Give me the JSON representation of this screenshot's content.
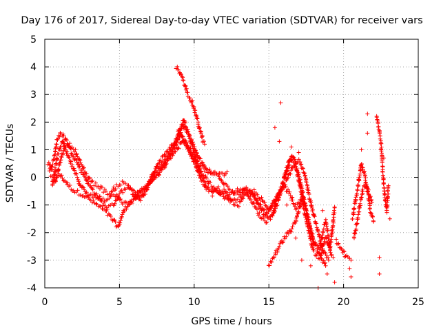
{
  "chart_data": {
    "type": "scatter",
    "title": "Day 176 of 2017, Sidereal Day-to-day VTEC variation (SDTVAR) for receiver vars",
    "xlabel": "GPS time / hours",
    "ylabel": "SDTVAR / TECUs",
    "xlim": [
      0,
      25
    ],
    "ylim": [
      -4,
      5
    ],
    "xticks": [
      0,
      5,
      10,
      15,
      20,
      25
    ],
    "yticks": [
      -4,
      -3,
      -2,
      -1,
      0,
      1,
      2,
      3,
      4,
      5
    ],
    "grid": true,
    "marker": "+",
    "series": [
      {
        "name": "SDTVAR",
        "color": "#ff0000",
        "tracks": [
          [
            [
              0.2,
              0.5
            ],
            [
              0.5,
              0.3
            ],
            [
              0.8,
              0.2
            ],
            [
              1.0,
              0.1
            ],
            [
              1.3,
              -0.1
            ],
            [
              1.6,
              -0.3
            ],
            [
              2.0,
              -0.5
            ],
            [
              2.5,
              -0.6
            ],
            [
              3.0,
              -0.8
            ],
            [
              3.5,
              -1.0
            ],
            [
              4.0,
              -1.2
            ],
            [
              4.5,
              -1.5
            ],
            [
              4.9,
              -1.8
            ],
            [
              5.1,
              -1.5
            ],
            [
              5.3,
              -1.2
            ],
            [
              5.7,
              -0.9
            ],
            [
              6.2,
              -0.6
            ],
            [
              6.7,
              -0.4
            ],
            [
              7.2,
              -0.1
            ],
            [
              7.7,
              0.2
            ],
            [
              8.2,
              0.6
            ],
            [
              8.7,
              1.1
            ],
            [
              9.1,
              1.6
            ],
            [
              9.4,
              1.3
            ],
            [
              9.8,
              0.8
            ],
            [
              10.2,
              0.4
            ],
            [
              10.6,
              0.1
            ],
            [
              11.0,
              -0.2
            ],
            [
              11.4,
              -0.4
            ],
            [
              11.8,
              -0.6
            ],
            [
              12.2,
              -0.8
            ],
            [
              12.6,
              -0.8
            ],
            [
              13.0,
              -0.7
            ],
            [
              13.5,
              -0.5
            ],
            [
              14.0,
              -0.7
            ],
            [
              14.5,
              -1.1
            ],
            [
              15.0,
              -1.4
            ],
            [
              15.3,
              -1.3
            ],
            [
              15.6,
              -0.6
            ],
            [
              15.9,
              -0.3
            ],
            [
              16.2,
              0.3
            ],
            [
              16.6,
              0.8
            ],
            [
              17.0,
              0.1
            ],
            [
              17.5,
              -1.2
            ],
            [
              18.0,
              -2.3
            ],
            [
              18.5,
              -2.9
            ],
            [
              18.8,
              -3.2
            ]
          ],
          [
            [
              0.3,
              0.2
            ],
            [
              0.6,
              0.6
            ],
            [
              0.8,
              1.3
            ],
            [
              1.1,
              1.6
            ],
            [
              1.4,
              1.4
            ],
            [
              1.8,
              0.9
            ],
            [
              2.2,
              0.5
            ],
            [
              2.6,
              0.1
            ],
            [
              3.0,
              -0.3
            ],
            [
              3.4,
              -0.6
            ],
            [
              3.8,
              -0.9
            ],
            [
              4.2,
              -1.1
            ],
            [
              4.6,
              -1.0
            ],
            [
              5.0,
              -0.6
            ],
            [
              5.4,
              -0.4
            ],
            [
              5.8,
              -0.5
            ],
            [
              6.2,
              -0.8
            ],
            [
              6.6,
              -0.6
            ],
            [
              7.0,
              -0.2
            ],
            [
              7.5,
              0.3
            ],
            [
              8.0,
              0.6
            ],
            [
              8.5,
              1.0
            ],
            [
              9.0,
              1.5
            ],
            [
              9.3,
              2.1
            ],
            [
              9.6,
              1.6
            ],
            [
              10.0,
              0.9
            ],
            [
              10.4,
              0.2
            ],
            [
              10.8,
              -0.3
            ],
            [
              11.2,
              -0.5
            ],
            [
              11.6,
              -0.5
            ],
            [
              12.0,
              -0.6
            ],
            [
              12.4,
              -0.6
            ],
            [
              12.8,
              -0.5
            ],
            [
              13.2,
              -0.4
            ],
            [
              13.6,
              -0.6
            ],
            [
              14.0,
              -1.0
            ],
            [
              14.4,
              -1.4
            ],
            [
              14.8,
              -1.6
            ],
            [
              15.2,
              -1.4
            ],
            [
              15.6,
              -0.9
            ],
            [
              16.0,
              -0.1
            ],
            [
              16.4,
              0.7
            ],
            [
              16.8,
              0.4
            ],
            [
              17.2,
              -0.6
            ],
            [
              17.6,
              -1.5
            ],
            [
              18.0,
              -2.4
            ],
            [
              18.4,
              -2.6
            ],
            [
              18.8,
              -1.5
            ],
            [
              19.1,
              -2.6
            ],
            [
              19.4,
              -1.1
            ]
          ],
          [
            [
              0.4,
              0.0
            ],
            [
              0.7,
              -0.2
            ],
            [
              1.0,
              0.5
            ],
            [
              1.3,
              1.1
            ],
            [
              1.6,
              1.2
            ],
            [
              2.0,
              1.0
            ],
            [
              2.4,
              0.5
            ],
            [
              2.8,
              0.1
            ],
            [
              3.2,
              -0.2
            ],
            [
              3.6,
              -0.3
            ],
            [
              4.0,
              -0.5
            ],
            [
              4.4,
              -0.6
            ],
            [
              4.8,
              -0.3
            ],
            [
              5.2,
              -0.2
            ],
            [
              5.6,
              -0.3
            ],
            [
              6.0,
              -0.5
            ],
            [
              6.4,
              -0.8
            ],
            [
              6.8,
              -0.5
            ],
            [
              7.2,
              0.1
            ],
            [
              7.7,
              0.6
            ],
            [
              8.2,
              0.9
            ],
            [
              8.7,
              1.3
            ],
            [
              9.2,
              1.9
            ],
            [
              9.6,
              1.6
            ],
            [
              10.0,
              1.1
            ],
            [
              10.4,
              0.6
            ],
            [
              10.8,
              0.3
            ],
            [
              11.2,
              0.1
            ],
            [
              11.6,
              0.1
            ],
            [
              12.0,
              -0.2
            ],
            [
              12.4,
              -0.4
            ],
            [
              12.8,
              -0.6
            ],
            [
              13.2,
              -0.5
            ],
            [
              13.6,
              -0.4
            ],
            [
              14.0,
              -0.7
            ],
            [
              14.4,
              -1.1
            ],
            [
              14.8,
              -1.4
            ],
            [
              15.2,
              -1.1
            ],
            [
              15.6,
              -0.7
            ],
            [
              16.0,
              -0.3
            ],
            [
              16.4,
              -0.6
            ],
            [
              16.8,
              -1.1
            ],
            [
              17.2,
              -0.8
            ],
            [
              17.6,
              -1.8
            ],
            [
              18.0,
              -2.7
            ],
            [
              18.4,
              -2.9
            ],
            [
              18.8,
              -2.2
            ],
            [
              19.2,
              -2.8
            ]
          ],
          [
            [
              0.5,
              -0.3
            ],
            [
              0.9,
              0.9
            ],
            [
              1.2,
              1.3
            ],
            [
              1.6,
              0.7
            ],
            [
              2.0,
              0.2
            ],
            [
              2.4,
              -0.3
            ],
            [
              2.8,
              -0.6
            ],
            [
              3.2,
              -0.7
            ],
            [
              3.6,
              -0.7
            ],
            [
              4.0,
              -0.8
            ],
            [
              4.4,
              -0.7
            ],
            [
              4.8,
              -0.6
            ],
            [
              5.2,
              -0.9
            ],
            [
              5.6,
              -1.0
            ],
            [
              6.0,
              -0.8
            ],
            [
              6.4,
              -0.5
            ],
            [
              6.8,
              -0.3
            ],
            [
              7.2,
              -0.1
            ],
            [
              7.6,
              0.1
            ],
            [
              8.0,
              0.4
            ],
            [
              8.4,
              0.7
            ],
            [
              8.8,
              1.0
            ],
            [
              9.2,
              1.3
            ],
            [
              9.6,
              1.0
            ],
            [
              10.0,
              0.6
            ],
            [
              10.4,
              0.0
            ],
            [
              10.8,
              -0.4
            ],
            [
              11.2,
              -0.6
            ],
            [
              11.6,
              -0.4
            ],
            [
              12.0,
              -0.5
            ],
            [
              12.5,
              -0.9
            ],
            [
              13.0,
              -1.0
            ],
            [
              13.5,
              -0.6
            ],
            [
              14.0,
              -0.5
            ],
            [
              14.5,
              -0.8
            ],
            [
              15.0,
              -1.2
            ],
            [
              15.4,
              -0.8
            ],
            [
              15.8,
              -0.4
            ],
            [
              16.2,
              -0.1
            ],
            [
              16.6,
              0.4
            ],
            [
              17.0,
              0.6
            ],
            [
              17.4,
              0.1
            ],
            [
              17.8,
              -0.9
            ],
            [
              18.2,
              -1.8
            ],
            [
              18.6,
              -2.6
            ],
            [
              19.0,
              -3.0
            ]
          ],
          [
            [
              8.8,
              4.0
            ],
            [
              9.0,
              3.8
            ],
            [
              9.2,
              3.6
            ],
            [
              9.4,
              3.3
            ],
            [
              9.6,
              3.0
            ],
            [
              9.8,
              2.8
            ],
            [
              10.0,
              2.5
            ],
            [
              10.2,
              2.1
            ],
            [
              10.4,
              1.7
            ],
            [
              10.6,
              1.3
            ],
            [
              10.7,
              1.2
            ]
          ],
          [
            [
              8.9,
              1.7
            ],
            [
              9.2,
              1.4
            ],
            [
              9.6,
              1.1
            ],
            [
              10.0,
              0.8
            ],
            [
              10.3,
              0.5
            ],
            [
              10.7,
              0.3
            ],
            [
              11.1,
              0.2
            ],
            [
              11.5,
              0.1
            ],
            [
              11.8,
              0.1
            ],
            [
              12.0,
              0.1
            ],
            [
              12.2,
              0.2
            ]
          ],
          [
            [
              15.0,
              -3.2
            ],
            [
              15.3,
              -2.9
            ],
            [
              15.6,
              -2.6
            ],
            [
              15.9,
              -2.3
            ],
            [
              16.2,
              -2.1
            ],
            [
              16.5,
              -1.9
            ],
            [
              16.8,
              -1.6
            ],
            [
              17.0,
              -1.2
            ],
            [
              17.3,
              -0.7
            ]
          ],
          [
            [
              19.5,
              -2.3
            ],
            [
              19.9,
              -2.6
            ],
            [
              20.2,
              -2.9
            ],
            [
              20.5,
              -3.0
            ]
          ],
          [
            [
              20.6,
              -1.5
            ],
            [
              20.8,
              -0.8
            ],
            [
              21.0,
              -0.2
            ],
            [
              21.2,
              0.5
            ],
            [
              21.4,
              0.1
            ],
            [
              21.6,
              -0.5
            ],
            [
              21.8,
              -1.2
            ],
            [
              22.0,
              -1.6
            ]
          ],
          [
            [
              20.7,
              -2.2
            ],
            [
              20.9,
              -1.6
            ],
            [
              21.1,
              -1.0
            ],
            [
              21.3,
              -0.4
            ],
            [
              21.5,
              -0.2
            ],
            [
              21.7,
              -0.6
            ],
            [
              21.9,
              -0.9
            ]
          ],
          [
            [
              22.2,
              2.2
            ],
            [
              22.4,
              1.7
            ],
            [
              22.5,
              1.2
            ],
            [
              22.6,
              0.5
            ],
            [
              22.7,
              -0.3
            ],
            [
              22.8,
              -0.9
            ],
            [
              22.9,
              -1.2
            ],
            [
              23.0,
              -0.3
            ]
          ]
        ],
        "scattered_points": [
          [
            15.4,
            1.8
          ],
          [
            15.8,
            2.7
          ],
          [
            15.7,
            1.3
          ],
          [
            16.5,
            1.1
          ],
          [
            17.0,
            0.9
          ],
          [
            17.2,
            -3.0
          ],
          [
            18.3,
            -4.0
          ],
          [
            18.9,
            -3.5
          ],
          [
            19.4,
            -3.8
          ],
          [
            20.4,
            -3.3
          ],
          [
            20.5,
            -3.6
          ],
          [
            21.6,
            2.3
          ],
          [
            21.6,
            1.6
          ],
          [
            21.2,
            1.0
          ],
          [
            22.4,
            -2.9
          ],
          [
            22.4,
            -3.5
          ],
          [
            22.7,
            0.7
          ],
          [
            23.1,
            -1.5
          ],
          [
            17.8,
            -3.2
          ],
          [
            16.2,
            -1.0
          ],
          [
            16.8,
            -2.2
          ],
          [
            18.6,
            -1.2
          ],
          [
            19.3,
            -2.9
          ]
        ]
      }
    ]
  }
}
